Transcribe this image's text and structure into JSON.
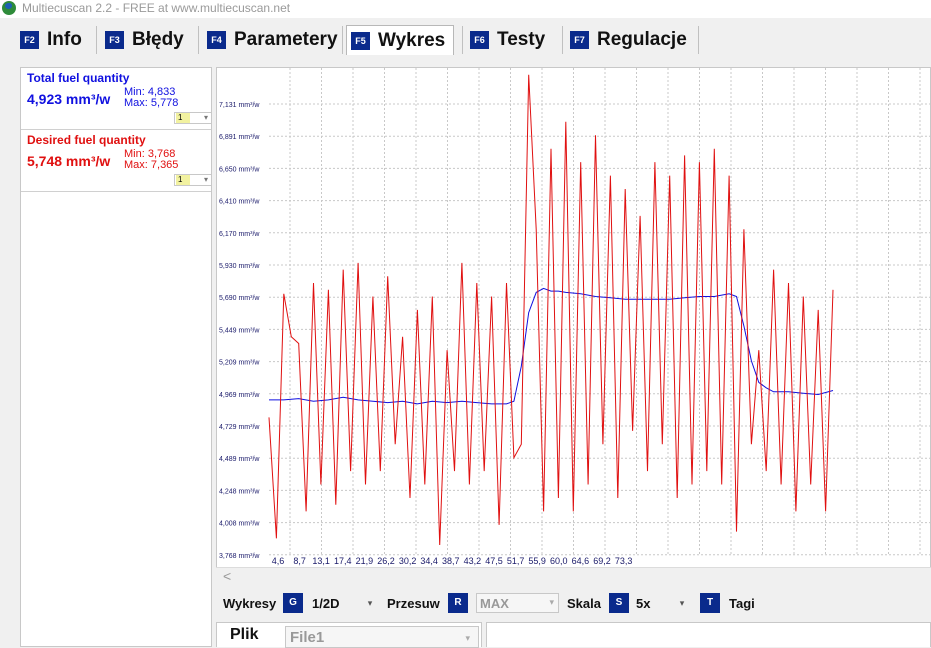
{
  "window": {
    "title": "Multiecuscan 2.2 - FREE at www.multiecuscan.net",
    "app_icon": "multiecuscan-logo-icon"
  },
  "tabs": [
    {
      "key": "F2",
      "label": "Info",
      "active": false
    },
    {
      "key": "F3",
      "label": "Błędy",
      "active": false
    },
    {
      "key": "F4",
      "label": "Parametery",
      "active": false
    },
    {
      "key": "F5",
      "label": "Wykres",
      "active": true
    },
    {
      "key": "F6",
      "label": "Testy",
      "active": false
    },
    {
      "key": "F7",
      "label": "Regulacje",
      "active": false
    }
  ],
  "parameters": [
    {
      "name": "Total fuel quantity",
      "value": "4,923 mm³/w",
      "min": "Min: 4,833",
      "max": "Max: 5,778",
      "scale": "1",
      "color": "#1010e0"
    },
    {
      "name": "Desired fuel quantity",
      "value": "5,748 mm³/w",
      "min": "Min: 3,768",
      "max": "Max: 7,365",
      "scale": "1",
      "color": "#e01010"
    }
  ],
  "chart_data": {
    "type": "line",
    "y_ticks": [
      "7,131 mm³/w",
      "6,891 mm³/w",
      "6,650 mm³/w",
      "6,410 mm³/w",
      "6,170 mm³/w",
      "5,930 mm³/w",
      "5,690 mm³/w",
      "5,449 mm³/w",
      "5,209 mm³/w",
      "4,969 mm³/w",
      "4,729 mm³/w",
      "4,489 mm³/w",
      "4,248 mm³/w",
      "4,008 mm³/w",
      "3,768 mm³/w"
    ],
    "x_ticks": [
      "4,6",
      "8,7",
      "13,1",
      "17,4",
      "21,9",
      "26,2",
      "30,2",
      "34,4",
      "38,7",
      "43,2",
      "47,5",
      "51,7",
      "55,9",
      "60,0",
      "64,6",
      "69,2",
      "73,3"
    ],
    "x_tick_values": [
      4.6,
      8.7,
      13.1,
      17.4,
      21.9,
      26.2,
      30.2,
      34.4,
      38.7,
      43.2,
      47.5,
      51.7,
      55.9,
      60.0,
      64.6,
      69.2,
      73.3
    ],
    "y_range": [
      3.768,
      7.371
    ],
    "x_range": [
      0.0,
      96.0
    ],
    "grid": true,
    "series": [
      {
        "name": "Total fuel quantity",
        "color": "#1010e0",
        "x": [
          0.0,
          2,
          4,
          6,
          8,
          10,
          12,
          14,
          16,
          18,
          20,
          22,
          24,
          26,
          28,
          30,
          32,
          33,
          34,
          35,
          36,
          37,
          38,
          39,
          40,
          42,
          44,
          46,
          48,
          50,
          52,
          54,
          56,
          58,
          60,
          61,
          62,
          63,
          64,
          65,
          66,
          67,
          68,
          70,
          72,
          74,
          76
        ],
        "y": [
          4.93,
          4.93,
          4.94,
          4.92,
          4.93,
          4.95,
          4.93,
          4.92,
          4.91,
          4.92,
          4.9,
          4.92,
          4.91,
          4.92,
          4.91,
          4.9,
          4.9,
          4.92,
          5.18,
          5.58,
          5.73,
          5.76,
          5.74,
          5.74,
          5.73,
          5.72,
          5.7,
          5.69,
          5.68,
          5.68,
          5.68,
          5.68,
          5.69,
          5.7,
          5.7,
          5.71,
          5.72,
          5.7,
          5.48,
          5.22,
          5.06,
          5.02,
          4.99,
          4.99,
          4.98,
          4.97,
          5.0
        ]
      },
      {
        "name": "Desired fuel quantity",
        "color": "#e01010",
        "x": [
          0.0,
          1,
          2,
          3,
          4,
          5,
          6,
          7,
          8,
          9,
          10,
          11,
          12,
          13,
          14,
          15,
          16,
          17,
          18,
          19,
          20,
          21,
          22,
          23,
          24,
          25,
          26,
          27,
          28,
          29,
          30,
          31,
          32,
          33,
          34,
          35,
          36,
          37,
          38,
          39,
          40,
          41,
          42,
          43,
          44,
          45,
          46,
          47,
          48,
          49,
          50,
          51,
          52,
          53,
          54,
          55,
          56,
          57,
          58,
          59,
          60,
          61,
          62,
          63,
          64,
          65,
          66,
          67,
          68,
          69,
          70,
          71,
          72,
          73,
          74,
          75,
          76
        ],
        "y": [
          4.8,
          3.9,
          5.72,
          5.4,
          5.35,
          4.1,
          5.8,
          4.3,
          5.75,
          4.15,
          5.9,
          4.4,
          5.95,
          4.3,
          5.7,
          4.4,
          5.85,
          4.6,
          5.4,
          4.2,
          5.6,
          4.3,
          5.7,
          3.85,
          5.3,
          4.4,
          5.95,
          4.3,
          5.8,
          4.4,
          5.7,
          4.0,
          5.8,
          4.5,
          4.6,
          7.35,
          6.2,
          4.1,
          6.8,
          4.2,
          7.0,
          4.1,
          6.7,
          4.3,
          6.9,
          4.6,
          6.6,
          4.2,
          6.5,
          4.7,
          6.3,
          4.4,
          6.7,
          4.6,
          6.6,
          4.2,
          6.75,
          4.3,
          6.7,
          4.4,
          6.8,
          4.3,
          6.6,
          3.95,
          6.2,
          4.6,
          5.3,
          4.4,
          5.9,
          4.3,
          5.8,
          4.1,
          5.7,
          4.3,
          5.6,
          4.1,
          5.75
        ]
      }
    ]
  },
  "bottom": {
    "wykresy_label": "Wykresy",
    "wykresy_key": "G",
    "wykresy_value": "1/2D",
    "przesuw_label": "Przesuw",
    "przesuw_key": "R",
    "przesuw_value": "MAX",
    "skala_label": "Skala",
    "skala_key": "S",
    "skala_value": "5x",
    "tagi_key": "T",
    "tagi_label": "Tagi",
    "dropdown_icon": "chevron-down-icon"
  },
  "file": {
    "label": "Plik",
    "value": "File1"
  },
  "scroll": {
    "left_arrow": "<"
  }
}
